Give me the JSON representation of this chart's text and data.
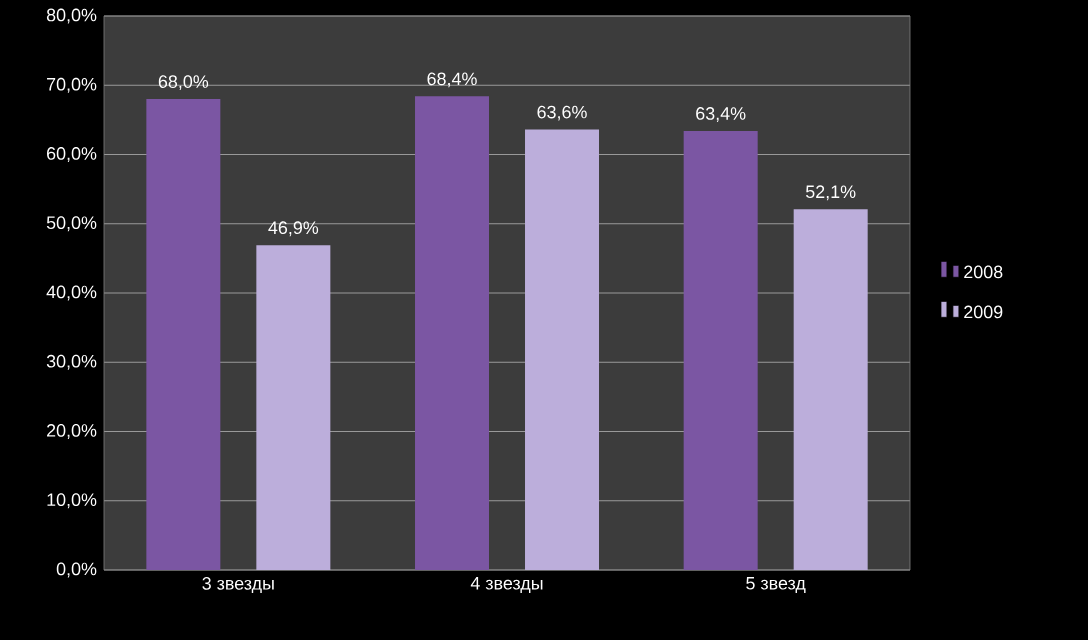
{
  "chart_data": {
    "type": "bar",
    "categories": [
      "3 звезды",
      "4 звезды",
      "5 звезд"
    ],
    "series": [
      {
        "name": "2008",
        "color": "#7b56a3",
        "values": [
          68.0,
          68.4,
          63.4
        ],
        "value_labels": [
          "68,0%",
          "68,4%",
          "63,4%"
        ]
      },
      {
        "name": "2009",
        "color": "#bcaedb",
        "values": [
          46.9,
          63.6,
          52.1
        ],
        "value_labels": [
          "46,9%",
          "63,6%",
          "52,1%"
        ]
      }
    ],
    "ylim": [
      0,
      80
    ],
    "yticks": [
      {
        "value": 0,
        "label": "0,0%"
      },
      {
        "value": 10,
        "label": "10,0%"
      },
      {
        "value": 20,
        "label": "20,0%"
      },
      {
        "value": 30,
        "label": "30,0%"
      },
      {
        "value": 40,
        "label": "40,0%"
      },
      {
        "value": 50,
        "label": "50,0%"
      },
      {
        "value": 60,
        "label": "60,0%"
      },
      {
        "value": 70,
        "label": "70,0%"
      },
      {
        "value": 80,
        "label": "80,0%"
      }
    ],
    "grid": "y",
    "legend": "right"
  }
}
